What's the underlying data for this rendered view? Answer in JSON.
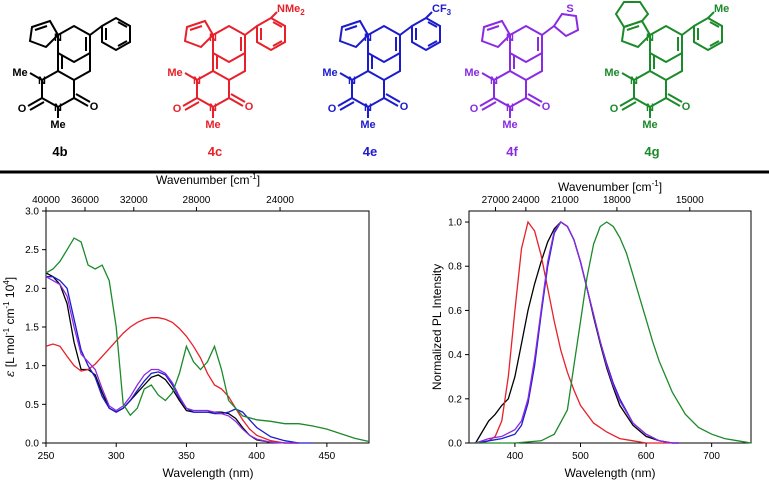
{
  "compounds": [
    {
      "label": "4b",
      "color": "#000000",
      "substituent": "",
      "fused": false,
      "thio": false
    },
    {
      "label": "4c",
      "color": "#e8202a",
      "substituent": "NMe2",
      "fused": false,
      "thio": false
    },
    {
      "label": "4e",
      "color": "#1c1ccc",
      "substituent": "CF3",
      "fused": false,
      "thio": false
    },
    {
      "label": "4f",
      "color": "#8a2be2",
      "substituent": "S",
      "fused": false,
      "thio": true
    },
    {
      "label": "4g",
      "color": "#1b8a2a",
      "substituent": "Me",
      "fused": true,
      "thio": false
    }
  ],
  "atoms": {
    "n": "N",
    "o": "O",
    "me": "Me",
    "cf": "CF",
    "cf_sub": "3",
    "nme": "NMe",
    "nme_sub": "2",
    "s": "S"
  },
  "colors": {
    "black": "#000000",
    "red": "#e8202a",
    "blue": "#1c1ccc",
    "purple": "#8a2be2",
    "green": "#1b8a2a",
    "divider": "#000000"
  },
  "chart_data": [
    {
      "type": "line",
      "title": "",
      "xlabel": "Wavelength (nm)",
      "ylabel": "ε [L mol-1 cm-1 104]",
      "ylabel_parts": {
        "eps": "ε",
        "a": " [L mol",
        "s1": "-1",
        "b": " cm",
        "s2": "-1",
        "c": " 10",
        "s3": "4",
        "d": "]"
      },
      "top_xlabel": "Wavenumber [cm-1]",
      "top_xlabel_parts": {
        "a": "Wavenumber [cm",
        "s": "-1",
        "b": "]"
      },
      "xlim": [
        250,
        480
      ],
      "ylim": [
        0,
        3.0
      ],
      "xticks": [
        250,
        300,
        350,
        400,
        450
      ],
      "yticks": [
        "0.0",
        "0.5",
        "1.0",
        "1.5",
        "2.0",
        "2.5",
        "3.0"
      ],
      "top_ticks": [
        40000,
        36000,
        32000,
        28000,
        24000
      ],
      "grid": false,
      "series": [
        {
          "color": "#000000",
          "x": [
            250,
            255,
            260,
            265,
            270,
            275,
            280,
            285,
            290,
            295,
            300,
            305,
            310,
            315,
            320,
            325,
            330,
            335,
            340,
            345,
            350,
            355,
            360,
            365,
            370,
            375,
            380,
            385,
            390,
            395,
            400,
            410,
            420,
            430
          ],
          "y": [
            2.2,
            2.15,
            2.05,
            1.8,
            1.3,
            0.95,
            0.95,
            0.88,
            0.65,
            0.45,
            0.4,
            0.45,
            0.55,
            0.65,
            0.75,
            0.85,
            0.88,
            0.82,
            0.7,
            0.55,
            0.42,
            0.4,
            0.4,
            0.4,
            0.4,
            0.4,
            0.38,
            0.32,
            0.2,
            0.1,
            0.04,
            0.01,
            0.0,
            0.0
          ]
        },
        {
          "color": "#e8202a",
          "x": [
            250,
            255,
            260,
            265,
            270,
            275,
            280,
            285,
            290,
            295,
            300,
            305,
            310,
            315,
            320,
            325,
            330,
            335,
            340,
            345,
            350,
            355,
            360,
            365,
            370,
            375,
            380,
            385,
            390,
            395,
            400,
            410,
            420,
            430
          ],
          "y": [
            1.25,
            1.28,
            1.25,
            1.12,
            1.0,
            0.93,
            0.95,
            1.02,
            1.12,
            1.22,
            1.32,
            1.42,
            1.5,
            1.56,
            1.6,
            1.62,
            1.62,
            1.6,
            1.56,
            1.48,
            1.38,
            1.25,
            1.1,
            0.9,
            0.75,
            0.7,
            0.6,
            0.45,
            0.3,
            0.18,
            0.1,
            0.03,
            0.0,
            0.0
          ]
        },
        {
          "color": "#1c1ccc",
          "x": [
            250,
            255,
            260,
            265,
            270,
            275,
            280,
            285,
            290,
            295,
            300,
            305,
            310,
            315,
            320,
            325,
            330,
            335,
            340,
            345,
            350,
            355,
            360,
            365,
            370,
            375,
            380,
            385,
            390,
            395,
            400,
            410,
            420,
            430,
            440
          ],
          "y": [
            2.15,
            2.15,
            2.1,
            2.0,
            1.6,
            1.2,
            1.0,
            0.85,
            0.6,
            0.45,
            0.4,
            0.45,
            0.55,
            0.68,
            0.8,
            0.9,
            0.92,
            0.88,
            0.75,
            0.58,
            0.45,
            0.4,
            0.4,
            0.4,
            0.38,
            0.38,
            0.4,
            0.44,
            0.4,
            0.3,
            0.2,
            0.08,
            0.03,
            0.0,
            0.0
          ]
        },
        {
          "color": "#8a2be2",
          "x": [
            250,
            255,
            260,
            265,
            270,
            275,
            280,
            285,
            290,
            295,
            300,
            305,
            310,
            315,
            320,
            325,
            330,
            335,
            340,
            345,
            350,
            355,
            360,
            365,
            370,
            375,
            380,
            385,
            390,
            395,
            400,
            410,
            420,
            430
          ],
          "y": [
            2.15,
            2.1,
            2.05,
            1.9,
            1.5,
            1.15,
            1.05,
            0.95,
            0.7,
            0.48,
            0.42,
            0.48,
            0.6,
            0.75,
            0.88,
            0.95,
            0.95,
            0.9,
            0.78,
            0.6,
            0.45,
            0.42,
            0.42,
            0.42,
            0.4,
            0.38,
            0.35,
            0.28,
            0.18,
            0.1,
            0.05,
            0.01,
            0.0,
            0.0
          ]
        },
        {
          "color": "#1b8a2a",
          "x": [
            250,
            255,
            260,
            265,
            270,
            275,
            280,
            285,
            290,
            295,
            300,
            305,
            310,
            315,
            320,
            325,
            330,
            335,
            340,
            345,
            350,
            355,
            360,
            365,
            370,
            375,
            380,
            390,
            400,
            410,
            420,
            430,
            440,
            450,
            460,
            470,
            480
          ],
          "y": [
            2.2,
            2.25,
            2.35,
            2.5,
            2.65,
            2.6,
            2.3,
            2.25,
            2.3,
            2.1,
            1.5,
            0.5,
            0.36,
            0.45,
            0.7,
            0.75,
            0.62,
            0.55,
            0.65,
            0.9,
            1.25,
            1.05,
            0.95,
            1.05,
            1.25,
            0.95,
            0.55,
            0.35,
            0.3,
            0.28,
            0.25,
            0.25,
            0.22,
            0.18,
            0.12,
            0.06,
            0.02
          ]
        }
      ]
    },
    {
      "type": "line",
      "title": "",
      "xlabel": "Wavelength (nm)",
      "ylabel": "Normalized PL Intensity",
      "top_xlabel": "Wavenumber [cm-1]",
      "top_xlabel_parts": {
        "a": "Wavenumber [cm",
        "s": "-1",
        "b": "]"
      },
      "xlim": [
        330,
        760
      ],
      "ylim": [
        0,
        1.05
      ],
      "xticks": [
        400,
        500,
        600,
        700
      ],
      "yticks": [
        "0.0",
        "0.2",
        "0.4",
        "0.6",
        "0.8",
        "1.0"
      ],
      "top_ticks": [
        27000,
        24000,
        21000,
        18000,
        15000
      ],
      "grid": false,
      "series": [
        {
          "color": "#000000",
          "x": [
            340,
            350,
            360,
            370,
            380,
            390,
            400,
            410,
            420,
            430,
            440,
            450,
            460,
            470,
            480,
            490,
            500,
            510,
            520,
            530,
            540,
            550,
            560,
            580,
            600,
            620,
            640,
            650
          ],
          "y": [
            0.0,
            0.05,
            0.1,
            0.13,
            0.17,
            0.2,
            0.3,
            0.45,
            0.6,
            0.72,
            0.82,
            0.91,
            0.97,
            1.0,
            0.98,
            0.92,
            0.82,
            0.7,
            0.57,
            0.45,
            0.34,
            0.25,
            0.17,
            0.08,
            0.03,
            0.01,
            0.0,
            0.0
          ]
        },
        {
          "color": "#e8202a",
          "x": [
            340,
            350,
            360,
            370,
            380,
            390,
            400,
            410,
            420,
            430,
            440,
            450,
            460,
            470,
            480,
            490,
            500,
            520,
            540,
            560,
            580,
            600,
            640,
            650
          ],
          "y": [
            0.0,
            0.0,
            0.01,
            0.03,
            0.1,
            0.3,
            0.6,
            0.88,
            1.0,
            0.96,
            0.85,
            0.7,
            0.55,
            0.42,
            0.32,
            0.24,
            0.17,
            0.09,
            0.05,
            0.02,
            0.01,
            0.0,
            0.0,
            0.0
          ]
        },
        {
          "color": "#1c1ccc",
          "x": [
            340,
            360,
            380,
            400,
            410,
            420,
            430,
            440,
            450,
            460,
            470,
            480,
            490,
            500,
            510,
            520,
            530,
            540,
            550,
            560,
            580,
            600,
            620,
            640,
            650
          ],
          "y": [
            0.0,
            0.01,
            0.02,
            0.04,
            0.08,
            0.18,
            0.35,
            0.58,
            0.8,
            0.95,
            1.0,
            0.98,
            0.92,
            0.82,
            0.7,
            0.58,
            0.46,
            0.36,
            0.27,
            0.2,
            0.09,
            0.04,
            0.01,
            0.0,
            0.0
          ]
        },
        {
          "color": "#8a2be2",
          "x": [
            340,
            360,
            380,
            400,
            410,
            420,
            430,
            440,
            450,
            460,
            470,
            480,
            490,
            500,
            510,
            520,
            530,
            540,
            550,
            560,
            580,
            600,
            620,
            640,
            650
          ],
          "y": [
            0.0,
            0.02,
            0.03,
            0.06,
            0.1,
            0.2,
            0.38,
            0.6,
            0.82,
            0.96,
            1.0,
            0.98,
            0.92,
            0.82,
            0.7,
            0.58,
            0.46,
            0.35,
            0.26,
            0.19,
            0.09,
            0.04,
            0.01,
            0.0,
            0.0
          ]
        },
        {
          "color": "#1b8a2a",
          "x": [
            340,
            400,
            440,
            460,
            480,
            490,
            500,
            510,
            520,
            530,
            540,
            550,
            560,
            570,
            580,
            590,
            600,
            610,
            620,
            640,
            660,
            680,
            700,
            720,
            740,
            760
          ],
          "y": [
            0.0,
            0.0,
            0.01,
            0.04,
            0.15,
            0.35,
            0.55,
            0.75,
            0.9,
            0.98,
            1.0,
            0.98,
            0.93,
            0.86,
            0.76,
            0.66,
            0.56,
            0.46,
            0.37,
            0.23,
            0.13,
            0.07,
            0.04,
            0.02,
            0.01,
            0.0
          ]
        }
      ]
    }
  ]
}
